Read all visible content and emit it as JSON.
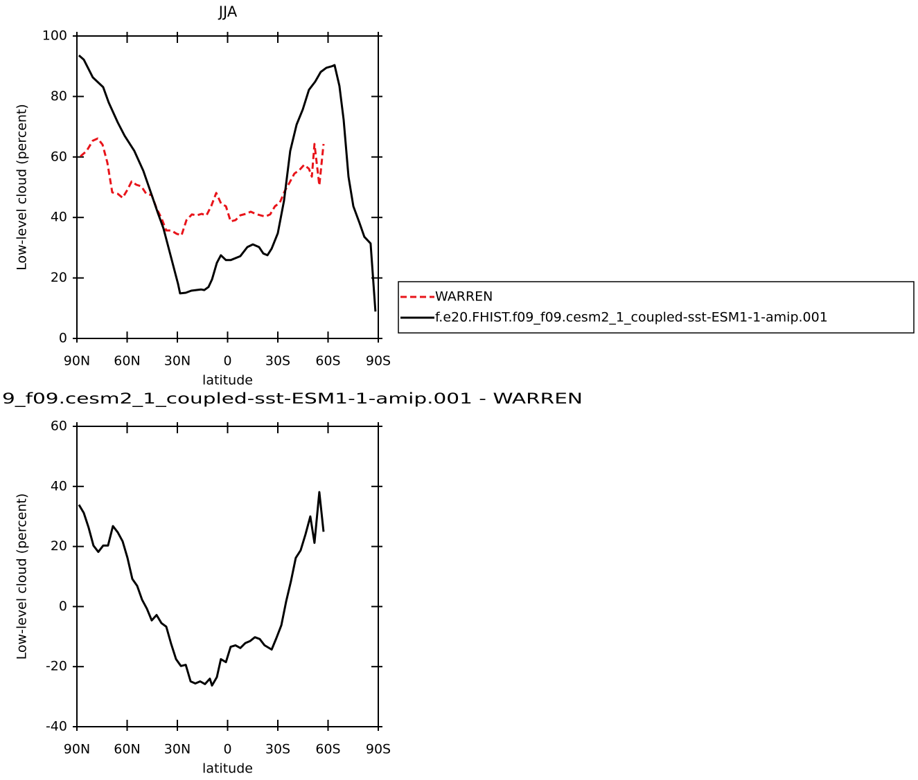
{
  "chart_data": [
    {
      "type": "line",
      "title": "JJA",
      "xlabel": "latitude",
      "ylabel": "Low-level cloud (percent)",
      "xlim": [
        90,
        -90
      ],
      "xticks": [
        {
          "value": 90,
          "label": "90N"
        },
        {
          "value": 60,
          "label": "60N"
        },
        {
          "value": 30,
          "label": "30N"
        },
        0,
        {
          "value": -30,
          "label": "30S"
        },
        {
          "value": -60,
          "label": "60S"
        },
        {
          "value": -90,
          "label": "90S"
        }
      ],
      "ylim": [
        0,
        100
      ],
      "yticks": [
        0,
        20,
        40,
        60,
        80,
        100
      ],
      "legend": "right",
      "series": [
        {
          "name": "WARREN",
          "color": "#e8141a",
          "dashed": true,
          "x": [
            87.9,
            84.2,
            80.5,
            77.6,
            74.7,
            71.8,
            68.9,
            65.6,
            62.7,
            59.8,
            57.3,
            54.4,
            51.5,
            48.6,
            45.3,
            42.4,
            39.5,
            36.6,
            33.7,
            30.4,
            27.5,
            24.6,
            21.3,
            18.4,
            15.5,
            12.6,
            9.7,
            6.8,
            3.9,
            1,
            -1.8,
            -4.7,
            -7.6,
            -10.9,
            -13.8,
            -16.7,
            -19.6,
            -22.5,
            -25.4,
            -28.3,
            -31.2,
            -34.1,
            -37,
            -39.9,
            -42.8,
            -45.7,
            -48.6,
            -50.3,
            -51.9,
            -54.8,
            -57.3
          ],
          "values": [
            60.2,
            62,
            65.4,
            66.1,
            64.1,
            58.1,
            48.3,
            47.8,
            46.5,
            49.2,
            51.9,
            50.8,
            50.3,
            47.8,
            47.4,
            43,
            39.8,
            35.7,
            35.7,
            34.6,
            34.1,
            39.1,
            41,
            40.7,
            41.2,
            40.7,
            43.9,
            48.1,
            44.6,
            43.7,
            38.7,
            39.1,
            40.7,
            41.2,
            41.9,
            41.2,
            40.7,
            40.3,
            41,
            43.7,
            44.9,
            48.7,
            51.5,
            54.5,
            55.6,
            57.4,
            56.1,
            53.5,
            64.3,
            50.6,
            64.3
          ]
        },
        {
          "name": "f.e20.FHIST.f09_f09.cesm2_1_coupled-sst-ESM1-1-amip.001",
          "color": "#000000",
          "dashed": false,
          "x": [
            88.8,
            85.9,
            80.5,
            74.3,
            71,
            65.6,
            61.5,
            55.7,
            50.3,
            45.7,
            41.6,
            38.3,
            32.9,
            29.6,
            28.4,
            25,
            21.7,
            15.9,
            13.9,
            11.4,
            9.3,
            6.4,
            4,
            1,
            -1.8,
            -7.6,
            -11.8,
            -15.1,
            -18.8,
            -21.3,
            -23.8,
            -26.3,
            -30,
            -33.7,
            -37.4,
            -41.2,
            -44.9,
            -48.6,
            -52.3,
            -55.6,
            -59,
            -62.3,
            -63.9,
            -66.8,
            -69.3,
            -72.2,
            -75.1,
            -78.8,
            -81.7,
            -85.4,
            -88.3
          ],
          "values": [
            93.6,
            92.2,
            86.3,
            83.1,
            78,
            71.4,
            67,
            62,
            55.4,
            48,
            41.4,
            36.4,
            25,
            18,
            14.9,
            15.1,
            15.8,
            16.2,
            16,
            17,
            19.5,
            25,
            27.5,
            25.9,
            25.9,
            27.2,
            30.2,
            31.1,
            30.2,
            28.1,
            27.5,
            29.7,
            34.8,
            45.5,
            62,
            70.7,
            75.7,
            82.2,
            84.9,
            88.1,
            89.5,
            90,
            90.4,
            83.5,
            72.3,
            53.5,
            43.7,
            38.2,
            33.6,
            31.4,
            8.9
          ]
        }
      ]
    },
    {
      "type": "line",
      "title": "9_f09.cesm2_1_coupled-sst-ESM1-1-amip.001 - WARREN",
      "xlabel": "latitude",
      "ylabel": "Low-level cloud (percent)",
      "xlim": [
        90,
        -90
      ],
      "xticks": [
        {
          "value": 90,
          "label": "90N"
        },
        {
          "value": 60,
          "label": "60N"
        },
        {
          "value": 30,
          "label": "30N"
        },
        0,
        {
          "value": -30,
          "label": "30S"
        },
        {
          "value": -60,
          "label": "60S"
        },
        {
          "value": -90,
          "label": "90S"
        }
      ],
      "ylim": [
        -40,
        60
      ],
      "yticks": [
        -40,
        -20,
        0,
        20,
        40,
        60
      ],
      "series": [
        {
          "color": "#000000",
          "dashed": false,
          "x": [
            88.8,
            85.9,
            83,
            80.1,
            77.2,
            74.3,
            71.4,
            68.5,
            65.6,
            62.7,
            59.8,
            56.9,
            54,
            51.1,
            48.2,
            45.3,
            42.4,
            39.5,
            36.6,
            33.7,
            30.8,
            27.9,
            25,
            22.1,
            19.3,
            16.4,
            13.5,
            10.6,
            9.3,
            6.4,
            4,
            1,
            -1.8,
            -4.7,
            -7.6,
            -10.5,
            -13.4,
            -16.3,
            -19.2,
            -22.1,
            -26.3,
            -29.2,
            -32.1,
            -35,
            -37.8,
            -40.7,
            -43.6,
            -46.5,
            -49.4,
            -51.9,
            -54.8,
            -57.3
          ],
          "values": [
            33.9,
            31.2,
            26.3,
            20.3,
            18.2,
            20.3,
            20.3,
            26.8,
            24.7,
            21.7,
            16.2,
            9.2,
            6.9,
            2.3,
            -0.7,
            -4.6,
            -2.8,
            -5.5,
            -6.7,
            -12.5,
            -17.5,
            -19.8,
            -19.4,
            -24.9,
            -25.6,
            -24.9,
            -25.8,
            -24,
            -26.3,
            -23.5,
            -17.5,
            -18.5,
            -13.4,
            -12.9,
            -13.8,
            -12.2,
            -11.5,
            -10.2,
            -10.8,
            -12.9,
            -14.3,
            -10.4,
            -6.2,
            1.8,
            8.3,
            16.2,
            18.7,
            24,
            30,
            21.2,
            38.1,
            24.9
          ]
        }
      ]
    }
  ]
}
